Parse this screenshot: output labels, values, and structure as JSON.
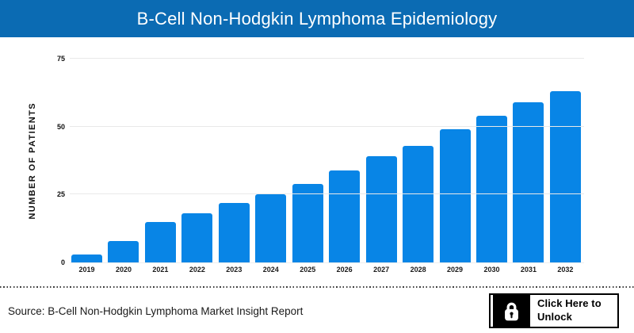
{
  "header": {
    "title": "B-Cell Non-Hodgkin Lymphoma Epidemiology",
    "banner_color": "#0b6bb3",
    "text_color": "#ffffff"
  },
  "chart_data": {
    "type": "bar",
    "title": "B-Cell Non-Hodgkin Lymphoma Epidemiology",
    "categories": [
      "2019",
      "2020",
      "2021",
      "2022",
      "2023",
      "2024",
      "2025",
      "2026",
      "2027",
      "2028",
      "2029",
      "2030",
      "2031",
      "2032"
    ],
    "values": [
      3,
      8,
      15,
      18,
      22,
      25,
      29,
      34,
      39,
      43,
      49,
      54,
      59,
      63
    ],
    "xlabel": "",
    "ylabel": "NUMBER OF PATIENTS",
    "ylim": [
      0,
      75
    ],
    "yticks": [
      0,
      25,
      50,
      75
    ],
    "bar_color": "#0885e6",
    "gridline_color": "#e9e9e9",
    "grid": "horizontal",
    "legend": "none"
  },
  "footer": {
    "source_text": "Source: B-Cell Non-Hodgkin Lymphoma Market Insight Report",
    "unlock_button": {
      "label_line1": "Click Here to",
      "label_line2": "Unlock",
      "icon": "lock-icon"
    }
  }
}
